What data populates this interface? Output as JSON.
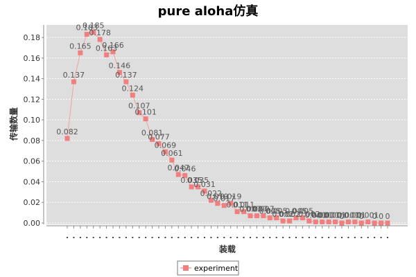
{
  "colors": {
    "series": "#f08080",
    "series_line": "#f4a0a0",
    "plot_background": "#dedede",
    "grid": "#ffffff",
    "axis": "#888888"
  },
  "chart_data": {
    "type": "line",
    "title": "pure aloha仿真",
    "xlabel": "装载",
    "ylabel": "传输数量",
    "ylim": [
      0,
      0.19
    ],
    "yticks": [
      "0.00",
      "0.02",
      "0.04",
      "0.06",
      "0.08",
      "0.10",
      "0.12",
      "0.14",
      "0.16",
      "0.18"
    ],
    "grid": true,
    "legend_position": "bottom",
    "series": [
      {
        "name": "experiment",
        "values": [
          0.082,
          0.137,
          0.165,
          0.183,
          0.185,
          0.178,
          0.163,
          0.166,
          0.146,
          0.137,
          0.124,
          0.107,
          0.101,
          0.081,
          0.077,
          0.069,
          0.061,
          0.047,
          0.046,
          0.035,
          0.035,
          0.031,
          0.022,
          0.019,
          0.017,
          0.019,
          0.011,
          0.011,
          0.007,
          0.007,
          0.007,
          0.005,
          0.005,
          0.002,
          0.002,
          0.005,
          0.005,
          0.002,
          0.001,
          0.001,
          0.001,
          0.001,
          0.0,
          0.001,
          0.001,
          0.0,
          0.001,
          0.0,
          0.0,
          0.0
        ],
        "labels": [
          "0.082",
          "0.137",
          "0.165",
          "0.183",
          "0.185",
          "0.178",
          "0.163",
          "0.166",
          "0.146",
          "0.137",
          "0.124",
          "0.107",
          "0.101",
          "0.081",
          "0.077",
          "0.069",
          "0.061",
          "0.047",
          "0.046",
          "0.035",
          "0.035",
          "0.031",
          "0.022",
          "0.019",
          "0.017",
          "0.019",
          "0.011",
          "0.011",
          "0.007",
          "0.007",
          "0.007",
          "0.005",
          "0.005",
          "0.002",
          "0.002",
          "0.005",
          "0.005",
          "0.002",
          "0.001",
          "0.001",
          "0.001",
          "0.001",
          "0",
          "0.001",
          "0.001",
          "0",
          "0.001",
          "0",
          "0",
          "0"
        ]
      }
    ]
  }
}
